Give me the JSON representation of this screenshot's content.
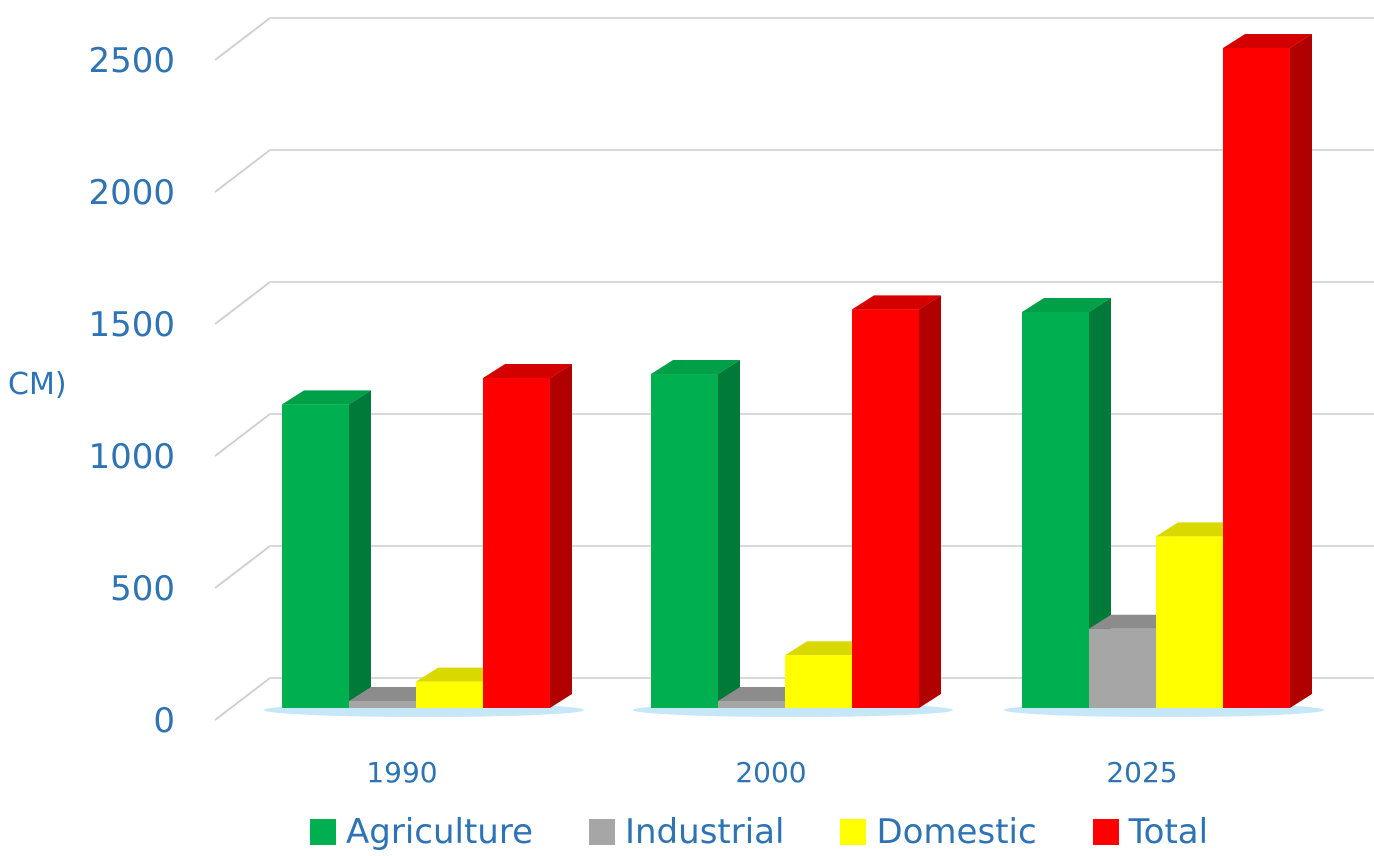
{
  "chart_data": {
    "type": "bar",
    "title": "",
    "xlabel": "",
    "ylabel": "CM)",
    "categories": [
      "1990",
      "2000",
      "2025"
    ],
    "series": [
      {
        "name": "Agriculture",
        "values": [
          1150,
          1265,
          1500
        ],
        "color": "#00b050",
        "side_color": "#007a38",
        "top_color": "#00a048"
      },
      {
        "name": "Industrial",
        "values": [
          0,
          0,
          300
        ],
        "color": "#a6a6a6",
        "side_color": "#7a7a7a",
        "top_color": "#8c8c8c"
      },
      {
        "name": "Domestic",
        "values": [
          100,
          200,
          650
        ],
        "color": "#ffff00",
        "side_color": "#c8c800",
        "top_color": "#d9d900"
      },
      {
        "name": "Total",
        "values": [
          1250,
          1510,
          2500
        ],
        "color": "#ff0000",
        "side_color": "#b00000",
        "top_color": "#d40000"
      }
    ],
    "ylim": [
      0,
      2500
    ],
    "yticks": [
      "0",
      "500",
      "1000",
      "1500",
      "2000",
      "2500"
    ],
    "grid": true,
    "legend_position": "bottom"
  }
}
